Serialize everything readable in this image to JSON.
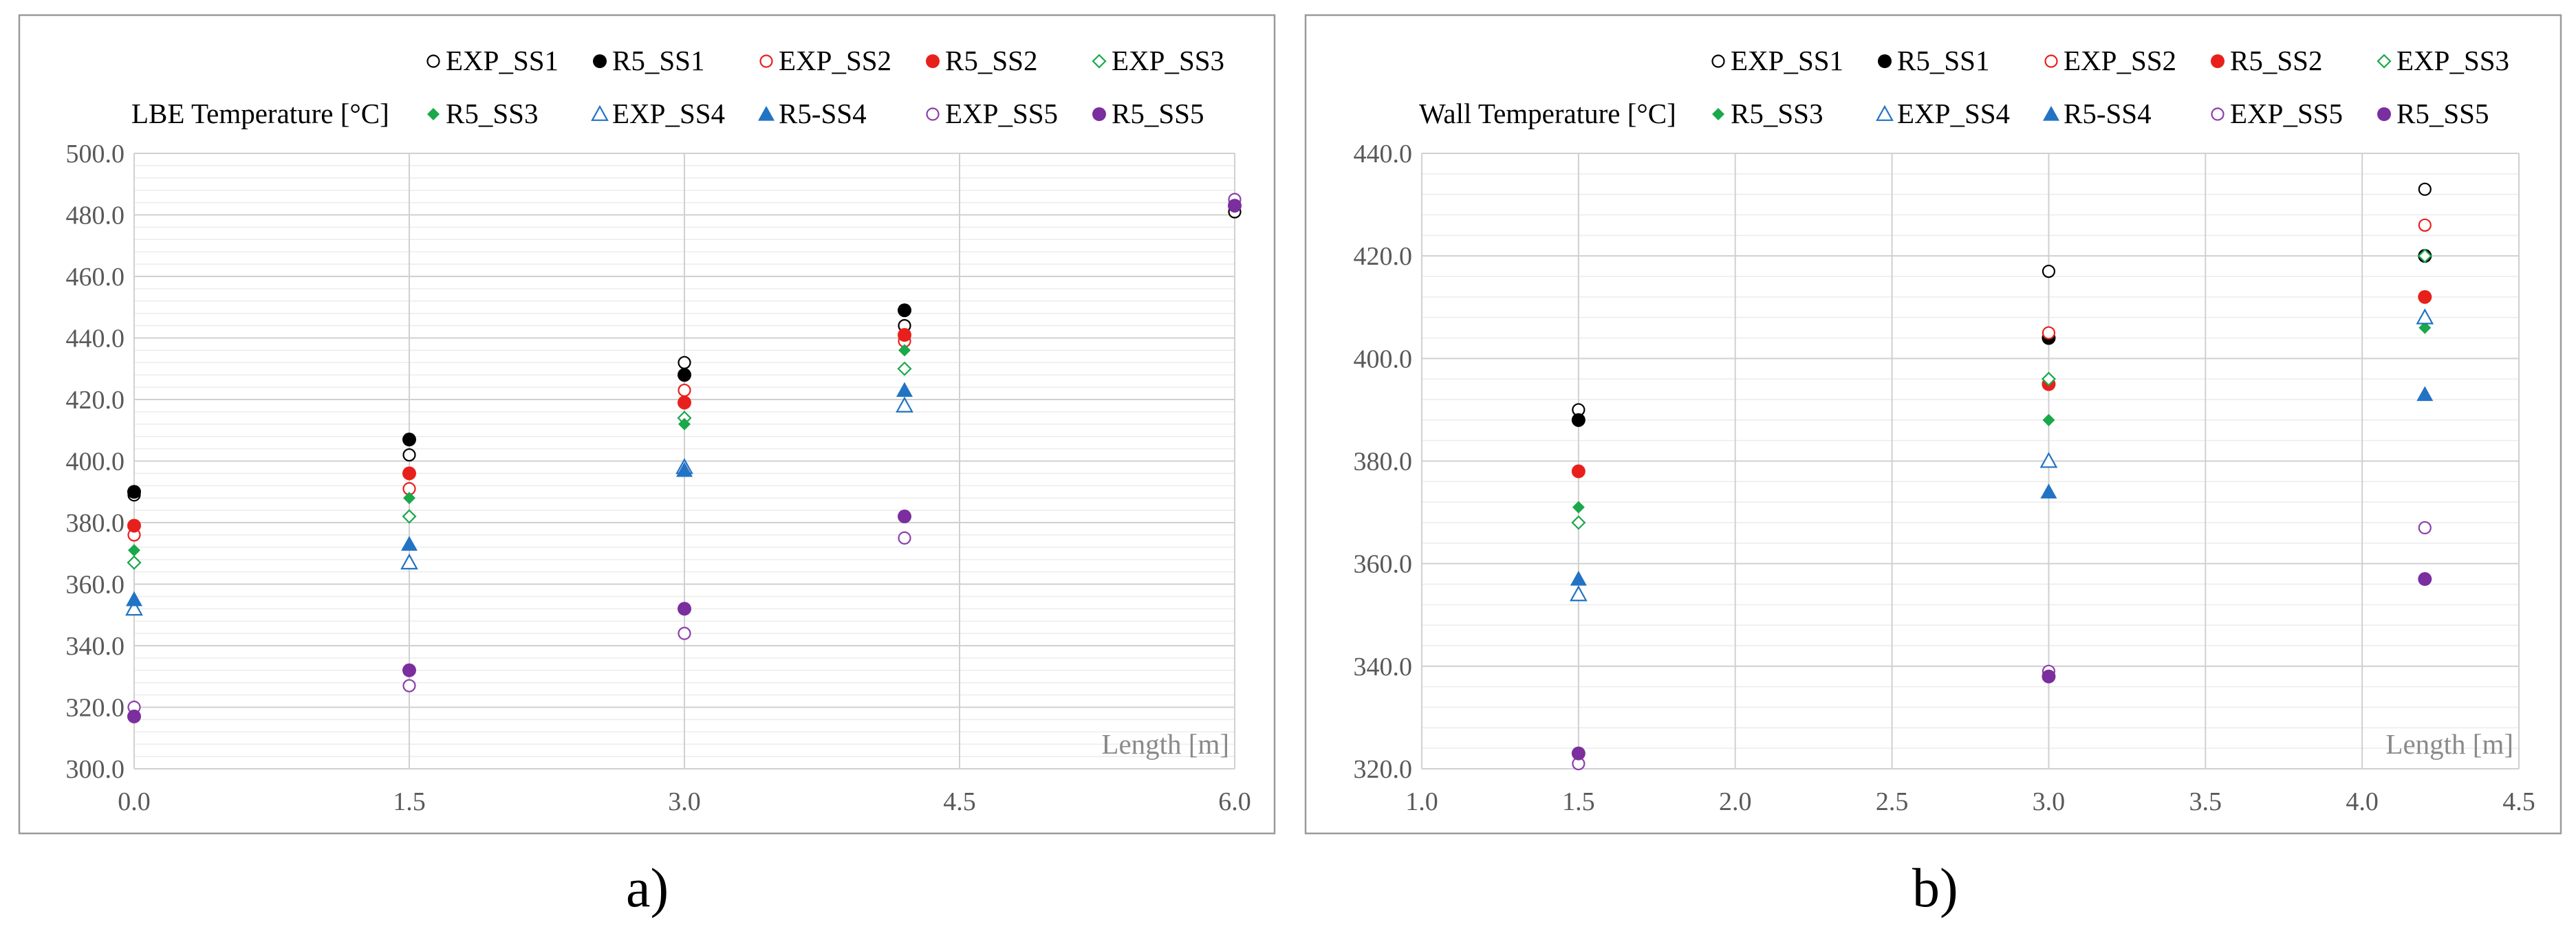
{
  "chart_data": [
    {
      "type": "scatter",
      "title": "LBE Temperature [°C]",
      "xlabel": "Length [m]",
      "caption": "a)",
      "xlim": [
        0,
        6
      ],
      "ylim": [
        300,
        500
      ],
      "xticks": [
        "0.0",
        "1.5",
        "3.0",
        "4.5",
        "6.0"
      ],
      "yticks": [
        "300.0",
        "320.0",
        "340.0",
        "360.0",
        "380.0",
        "400.0",
        "420.0",
        "440.0",
        "460.0",
        "480.0",
        "500.0"
      ],
      "series": [
        {
          "name": "EXP_SS1",
          "color": "#000000",
          "marker": "circle-open",
          "points": [
            [
              0,
              389
            ],
            [
              1.5,
              402
            ],
            [
              3.0,
              432
            ],
            [
              4.2,
              444
            ],
            [
              6.0,
              481
            ]
          ]
        },
        {
          "name": "R5_SS1",
          "color": "#000000",
          "marker": "circle",
          "points": [
            [
              0,
              390
            ],
            [
              1.5,
              407
            ],
            [
              3.0,
              428
            ],
            [
              4.2,
              449
            ]
          ]
        },
        {
          "name": "EXP_SS2",
          "color": "#e8201c",
          "marker": "circle-open",
          "points": [
            [
              0,
              376
            ],
            [
              1.5,
              391
            ],
            [
              3.0,
              423
            ],
            [
              4.2,
              439
            ]
          ]
        },
        {
          "name": "R5_SS2",
          "color": "#e8201c",
          "marker": "circle",
          "points": [
            [
              0,
              379
            ],
            [
              1.5,
              396
            ],
            [
              3.0,
              419
            ],
            [
              4.2,
              441
            ]
          ]
        },
        {
          "name": "EXP_SS3",
          "color": "#19a84a",
          "marker": "diamond-open",
          "points": [
            [
              0,
              367
            ],
            [
              1.5,
              382
            ],
            [
              3.0,
              414
            ],
            [
              4.2,
              430
            ]
          ]
        },
        {
          "name": "R5_SS3",
          "color": "#19a84a",
          "marker": "diamond",
          "points": [
            [
              0,
              371
            ],
            [
              1.5,
              388
            ],
            [
              3.0,
              412
            ],
            [
              4.2,
              436
            ]
          ]
        },
        {
          "name": "EXP_SS4",
          "color": "#2273c3",
          "marker": "triangle-open",
          "points": [
            [
              0,
              352
            ],
            [
              1.5,
              367
            ],
            [
              3.0,
              398
            ],
            [
              4.2,
              418
            ]
          ]
        },
        {
          "name": "R5-SS4",
          "color": "#2273c3",
          "marker": "triangle",
          "points": [
            [
              0,
              355
            ],
            [
              1.5,
              373
            ],
            [
              3.0,
              397
            ],
            [
              4.2,
              423
            ]
          ]
        },
        {
          "name": "EXP_SS5",
          "color": "#8a3fae",
          "marker": "circle-open",
          "points": [
            [
              0,
              320
            ],
            [
              1.5,
              327
            ],
            [
              3.0,
              344
            ],
            [
              4.2,
              375
            ],
            [
              6.0,
              485
            ]
          ]
        },
        {
          "name": "R5_SS5",
          "color": "#7b2e9e",
          "marker": "circle",
          "points": [
            [
              0,
              317
            ],
            [
              1.5,
              332
            ],
            [
              3.0,
              352
            ],
            [
              4.2,
              382
            ],
            [
              6.0,
              483
            ]
          ]
        }
      ]
    },
    {
      "type": "scatter",
      "title": "Wall Temperature [°C]",
      "xlabel": "Length [m]",
      "caption": "b)",
      "xlim": [
        1.0,
        4.5
      ],
      "ylim": [
        320,
        440
      ],
      "xticks": [
        "1.0",
        "1.5",
        "2.0",
        "2.5",
        "3.0",
        "3.5",
        "4.0",
        "4.5"
      ],
      "yticks": [
        "320.0",
        "340.0",
        "360.0",
        "380.0",
        "400.0",
        "420.0",
        "440.0"
      ],
      "series": [
        {
          "name": "EXP_SS1",
          "color": "#000000",
          "marker": "circle-open",
          "points": [
            [
              1.5,
              390
            ],
            [
              3.0,
              417
            ],
            [
              4.2,
              433
            ]
          ]
        },
        {
          "name": "R5_SS1",
          "color": "#000000",
          "marker": "circle",
          "points": [
            [
              1.5,
              388
            ],
            [
              3.0,
              404
            ],
            [
              4.2,
              420
            ]
          ]
        },
        {
          "name": "EXP_SS2",
          "color": "#e8201c",
          "marker": "circle-open",
          "points": [
            [
              1.5,
              378
            ],
            [
              3.0,
              405
            ],
            [
              4.2,
              426
            ]
          ]
        },
        {
          "name": "R5_SS2",
          "color": "#e8201c",
          "marker": "circle",
          "points": [
            [
              1.5,
              378
            ],
            [
              3.0,
              395
            ],
            [
              4.2,
              412
            ]
          ]
        },
        {
          "name": "EXP_SS3",
          "color": "#19a84a",
          "marker": "diamond-open",
          "points": [
            [
              1.5,
              368
            ],
            [
              3.0,
              396
            ],
            [
              4.2,
              420
            ]
          ]
        },
        {
          "name": "R5_SS3",
          "color": "#19a84a",
          "marker": "diamond",
          "points": [
            [
              1.5,
              371
            ],
            [
              3.0,
              388
            ],
            [
              4.2,
              406
            ]
          ]
        },
        {
          "name": "EXP_SS4",
          "color": "#2273c3",
          "marker": "triangle-open",
          "points": [
            [
              1.5,
              354
            ],
            [
              3.0,
              380
            ],
            [
              4.2,
              408
            ]
          ]
        },
        {
          "name": "R5-SS4",
          "color": "#2273c3",
          "marker": "triangle",
          "points": [
            [
              1.5,
              357
            ],
            [
              3.0,
              374
            ],
            [
              4.2,
              393
            ]
          ]
        },
        {
          "name": "EXP_SS5",
          "color": "#8a3fae",
          "marker": "circle-open",
          "points": [
            [
              1.5,
              321
            ],
            [
              3.0,
              339
            ],
            [
              4.2,
              367
            ]
          ]
        },
        {
          "name": "R5_SS5",
          "color": "#7b2e9e",
          "marker": "circle",
          "points": [
            [
              1.5,
              323
            ],
            [
              3.0,
              338
            ],
            [
              4.2,
              357
            ]
          ]
        }
      ]
    }
  ]
}
